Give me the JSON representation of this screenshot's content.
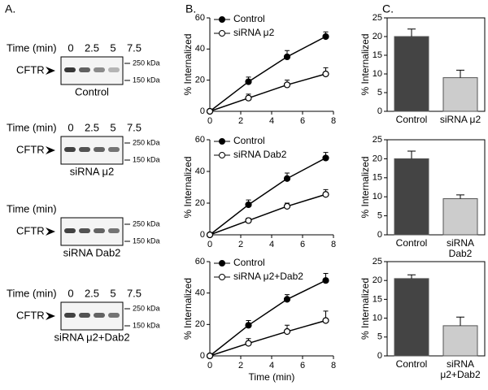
{
  "panel_labels": [
    "A.",
    "B.",
    "C."
  ],
  "blots": [
    {
      "time_label": "Time (min)",
      "times": [
        0,
        2.5,
        5,
        7.5
      ],
      "band": "CFTR",
      "markers": [
        "250 kDa",
        "150 kDa"
      ],
      "caption": "Control"
    },
    {
      "time_label": "Time (min)",
      "times": [
        0,
        2.5,
        5,
        7.5
      ],
      "band": "CFTR",
      "markers": [
        "250 kDa",
        "150 kDa"
      ],
      "caption": "siRNA μ2"
    },
    {
      "time_label": "Time (min)",
      "band": "CFTR",
      "markers": [
        "250 kDa",
        "150 kDa"
      ],
      "caption": "siRNA Dab2"
    },
    {
      "time_label": "Time (min)",
      "times": [
        0,
        2.5,
        5,
        7.5
      ],
      "band": "CFTR",
      "markers": [
        "250 kDa",
        "150 kDa"
      ],
      "caption": "siRNA μ2+Dab2"
    }
  ],
  "chart_data": [
    {
      "type": "line",
      "ylabel": "% Internalized",
      "x": [
        0,
        2.5,
        5,
        7.5
      ],
      "xlim": [
        0,
        8
      ],
      "xticks": [
        0,
        2,
        4,
        6,
        8
      ],
      "ylim": [
        0,
        60
      ],
      "yticks": [
        0,
        20,
        40,
        60
      ],
      "series": [
        {
          "name": "Control",
          "color": "#000000",
          "marker": "filled",
          "values": [
            0,
            19,
            35,
            48
          ],
          "errors": [
            0,
            3,
            4,
            3
          ]
        },
        {
          "name": "siRNA μ2",
          "color": "#000000",
          "marker": "open",
          "values": [
            0,
            8.5,
            17,
            24
          ],
          "errors": [
            0,
            2.5,
            3,
            4
          ]
        }
      ]
    },
    {
      "type": "line",
      "ylabel": "% Internalized",
      "x": [
        0,
        2.5,
        5,
        7.5
      ],
      "xlim": [
        0,
        8
      ],
      "xticks": [
        0,
        2,
        4,
        6,
        8
      ],
      "ylim": [
        0,
        60
      ],
      "yticks": [
        0,
        20,
        40,
        60
      ],
      "series": [
        {
          "name": "Control",
          "color": "#000000",
          "marker": "filled",
          "values": [
            0,
            19,
            35.5,
            48.5
          ],
          "errors": [
            0,
            3,
            3.5,
            3.5
          ]
        },
        {
          "name": "siRNA Dab2",
          "color": "#000000",
          "marker": "open",
          "values": [
            0,
            9,
            18,
            25.5
          ],
          "errors": [
            0,
            1.5,
            2,
            3
          ]
        }
      ]
    },
    {
      "type": "line",
      "ylabel": "% Internalized",
      "xlabel": "Time (min)",
      "x": [
        0,
        2.5,
        5,
        7.5
      ],
      "xlim": [
        0,
        8
      ],
      "xticks": [
        0,
        2,
        4,
        6,
        8
      ],
      "ylim": [
        0,
        60
      ],
      "yticks": [
        0,
        20,
        40,
        60
      ],
      "series": [
        {
          "name": "Control",
          "color": "#000000",
          "marker": "filled",
          "values": [
            0,
            19.5,
            36,
            48
          ],
          "errors": [
            0,
            3,
            3,
            4.5
          ]
        },
        {
          "name": "siRNA μ2+Dab2",
          "color": "#000000",
          "marker": "open",
          "values": [
            0,
            8,
            15.5,
            22.5
          ],
          "errors": [
            0,
            3,
            4,
            6
          ]
        }
      ]
    },
    {
      "type": "bar",
      "ylabel": "% Internalized",
      "categories": [
        "Control",
        "siRNA μ2"
      ],
      "values": [
        20,
        9
      ],
      "errors": [
        2,
        2
      ],
      "colors": [
        "#444444",
        "#cccccc"
      ],
      "ylim": [
        0,
        25
      ],
      "yticks": [
        0,
        5,
        10,
        15,
        20,
        25
      ]
    },
    {
      "type": "bar",
      "ylabel": "% Internalized",
      "categories": [
        "Control",
        "siRNA Dab2"
      ],
      "values": [
        20,
        9.5
      ],
      "errors": [
        2,
        1
      ],
      "colors": [
        "#444444",
        "#cccccc"
      ],
      "ylim": [
        0,
        25
      ],
      "yticks": [
        0,
        5,
        10,
        15,
        20,
        25
      ]
    },
    {
      "type": "bar",
      "ylabel": "% Internalized",
      "categories": [
        "Control",
        "siRNA μ2+Dab2"
      ],
      "values": [
        20.5,
        8
      ],
      "errors": [
        1,
        2.3
      ],
      "colors": [
        "#444444",
        "#cccccc"
      ],
      "ylim": [
        0,
        25
      ],
      "yticks": [
        0,
        5,
        10,
        15,
        20,
        25
      ]
    }
  ]
}
